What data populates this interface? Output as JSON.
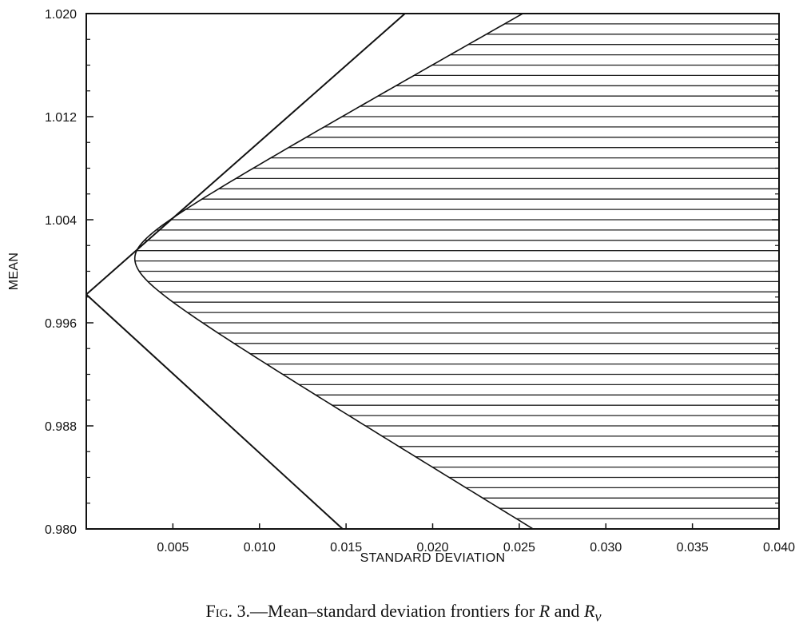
{
  "chart_data": {
    "type": "line",
    "xlabel": "STANDARD DEVIATION",
    "ylabel": "MEAN",
    "xlim": [
      0.0,
      0.04
    ],
    "ylim": [
      0.98,
      1.02
    ],
    "x_ticks": [
      {
        "value": 0.005,
        "label": "0.005"
      },
      {
        "value": 0.01,
        "label": "0.010"
      },
      {
        "value": 0.015,
        "label": "0.015"
      },
      {
        "value": 0.02,
        "label": "0.020"
      },
      {
        "value": 0.025,
        "label": "0.025"
      },
      {
        "value": 0.03,
        "label": "0.030"
      },
      {
        "value": 0.035,
        "label": "0.035"
      },
      {
        "value": 0.04,
        "label": "0.040"
      }
    ],
    "y_ticks": [
      {
        "value": 0.98,
        "label": "0.980"
      },
      {
        "value": 0.988,
        "label": "0.988"
      },
      {
        "value": 0.996,
        "label": "0.996"
      },
      {
        "value": 1.004,
        "label": "1.004"
      },
      {
        "value": 1.012,
        "label": "1.012"
      },
      {
        "value": 1.02,
        "label": "1.020"
      }
    ],
    "y_minor_step": 0.002,
    "grid": false,
    "legend": "none",
    "series": [
      {
        "kind": "cone-frontier",
        "vertex": [
          0.0,
          0.9982
        ],
        "upper_end": [
          0.0184,
          1.02
        ],
        "lower_end": [
          0.0148,
          0.98
        ]
      },
      {
        "kind": "hyperbola-frontier",
        "vertex": [
          0.0028,
          1.001
        ],
        "upper_end": [
          0.0252,
          1.02
        ],
        "lower_end": [
          0.0258,
          0.98
        ],
        "fill": "horizontal-hatch"
      }
    ],
    "hatch_step": 0.0008
  },
  "caption": {
    "fig_num": "Fig. 3.",
    "text": "—Mean–standard deviation frontiers for ",
    "r1": "R",
    "and": " and ",
    "r2": "R",
    "r2_sub": "v"
  }
}
